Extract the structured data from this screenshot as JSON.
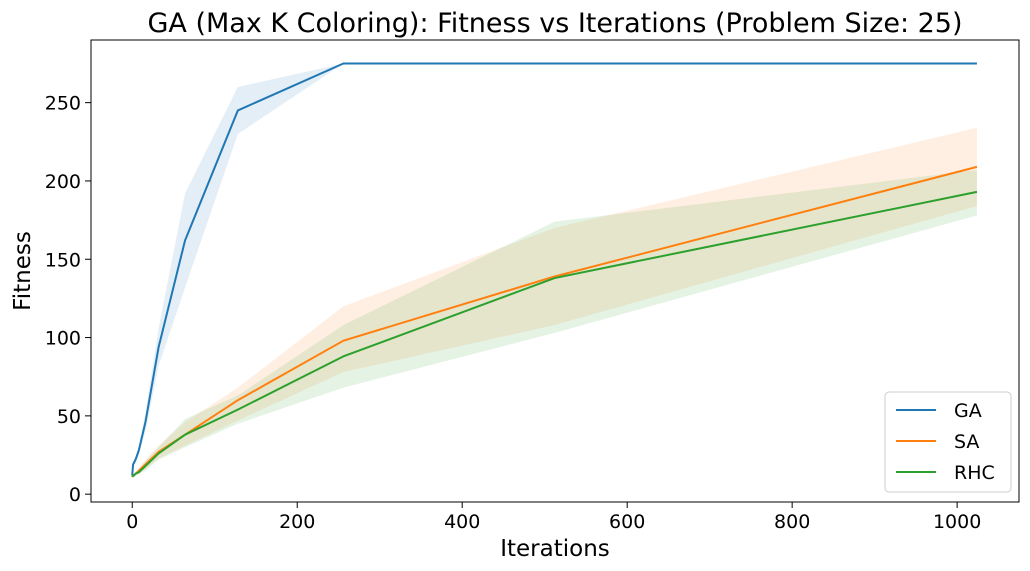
{
  "chart_data": {
    "type": "line",
    "title": "GA (Max K Coloring): Fitness vs Iterations (Problem Size: 25)",
    "xlabel": "Iterations",
    "ylabel": "Fitness",
    "xlim": [
      -50,
      1075
    ],
    "ylim": [
      -5,
      290
    ],
    "xticks": [
      0,
      200,
      400,
      600,
      800,
      1000
    ],
    "yticks": [
      0,
      50,
      100,
      150,
      200,
      250
    ],
    "grid": false,
    "legend_position": "lower right",
    "series": [
      {
        "name": "GA",
        "color": "#1f77b4",
        "x": [
          0,
          1,
          2,
          4,
          8,
          16,
          32,
          64,
          128,
          256,
          512,
          1024
        ],
        "y": [
          12,
          19,
          20,
          22,
          28,
          46,
          94,
          162,
          245,
          275,
          275,
          275
        ],
        "lower": [
          11,
          17,
          18,
          20,
          25,
          40,
          82,
          132,
          230,
          275,
          275,
          275
        ],
        "upper": [
          13,
          21,
          22,
          24,
          31,
          52,
          106,
          192,
          260,
          275,
          275,
          275
        ]
      },
      {
        "name": "SA",
        "color": "#ff7f0e",
        "x": [
          0,
          1,
          2,
          4,
          8,
          16,
          32,
          64,
          128,
          256,
          512,
          1024
        ],
        "y": [
          11,
          12,
          12,
          13,
          15,
          19,
          27,
          38,
          60,
          98,
          139,
          209
        ],
        "lower": [
          10,
          11,
          11,
          12,
          13,
          16,
          23,
          31,
          47,
          78,
          108,
          184
        ],
        "upper": [
          12,
          13,
          13,
          14,
          17,
          22,
          31,
          46,
          68,
          120,
          170,
          234
        ]
      },
      {
        "name": "RHC",
        "color": "#2ca02c",
        "x": [
          0,
          1,
          2,
          4,
          8,
          16,
          32,
          64,
          128,
          256,
          512,
          1024
        ],
        "y": [
          11,
          12,
          12,
          13,
          14,
          18,
          26,
          38,
          54,
          88,
          138,
          193
        ],
        "lower": [
          10,
          11,
          11,
          12,
          13,
          15,
          22,
          30,
          45,
          68,
          103,
          178
        ],
        "upper": [
          12,
          13,
          13,
          14,
          16,
          21,
          30,
          48,
          63,
          108,
          174,
          207
        ]
      }
    ]
  }
}
